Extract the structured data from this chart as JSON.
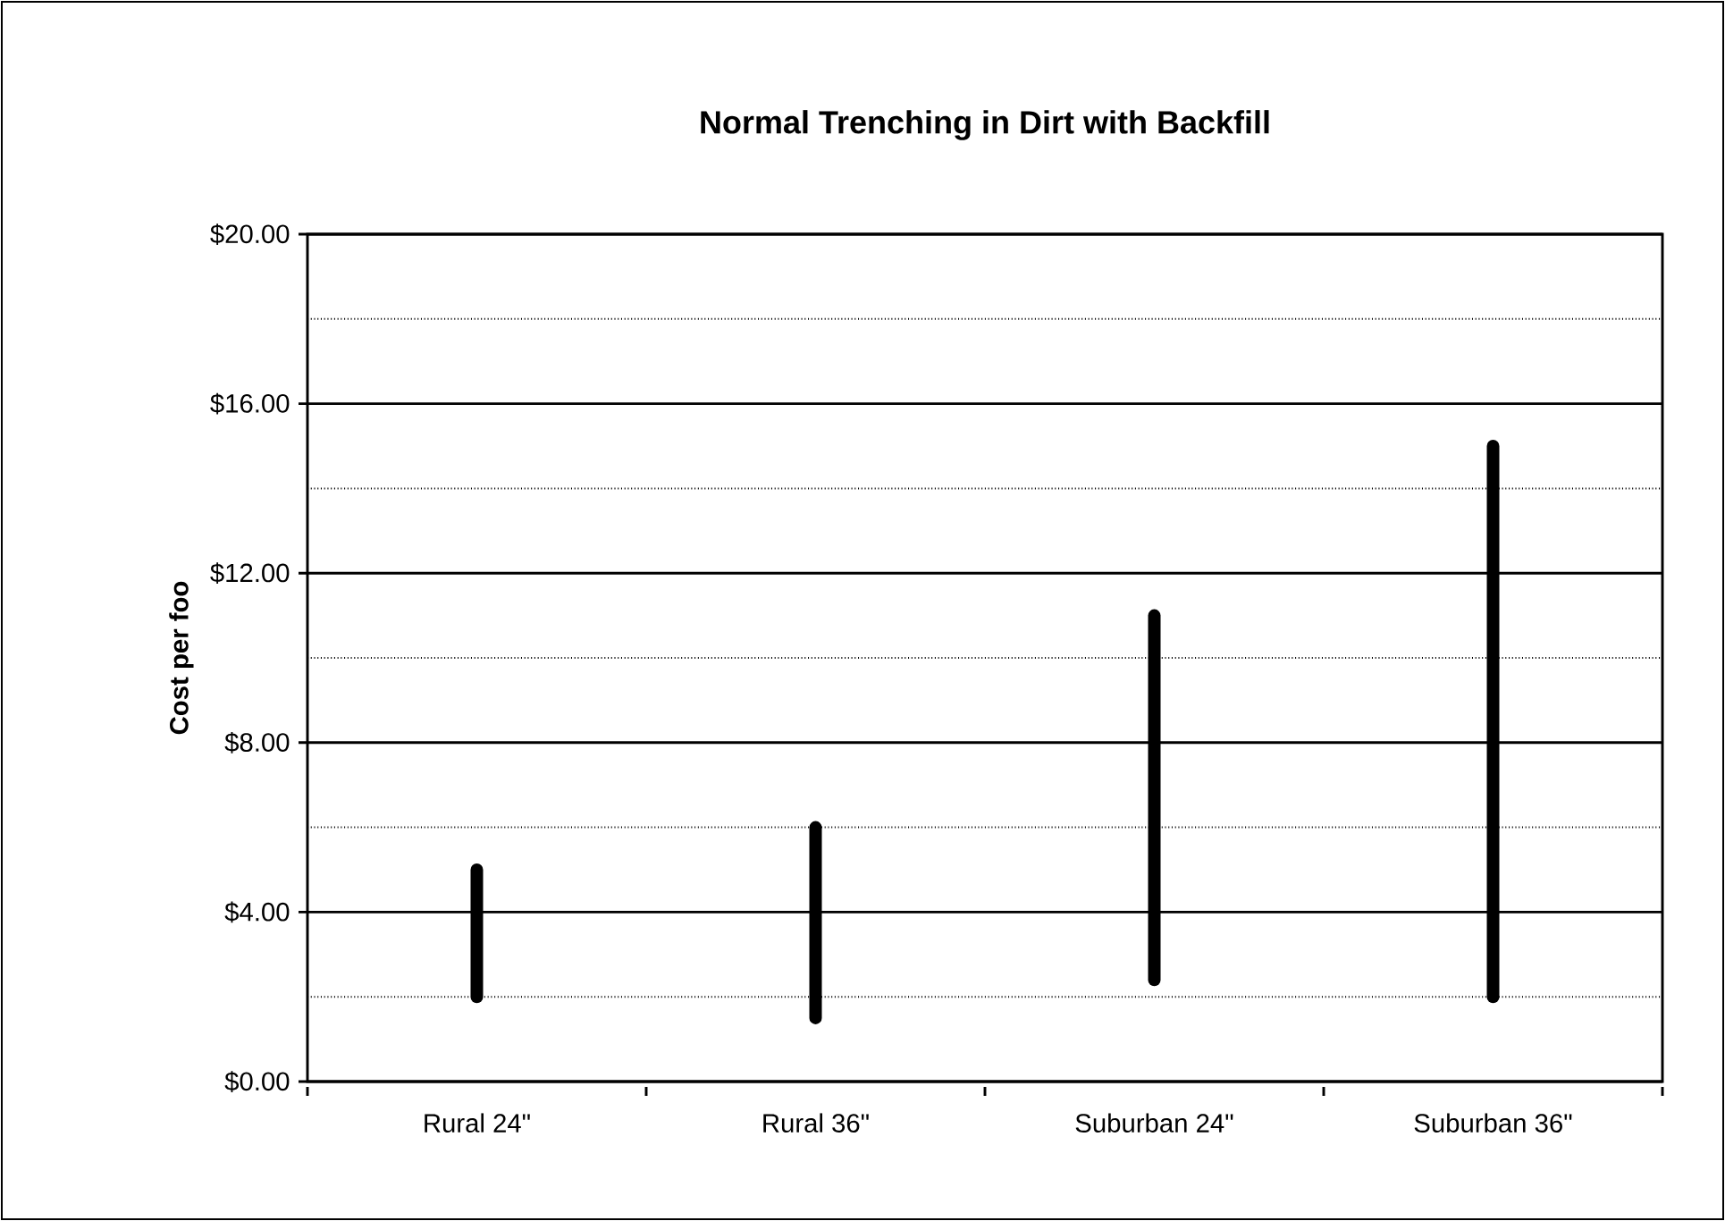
{
  "chart_data": {
    "type": "bar",
    "title": "Normal Trenching in Dirt with Backfill",
    "ylabel": "Cost per foo",
    "categories": [
      "Rural 24\"",
      "Rural 36\"",
      "Suburban 24\"",
      "Suburban 36\""
    ],
    "base": [
      2,
      1.5,
      2.4,
      2
    ],
    "values": [
      3,
      4.5,
      8.6,
      13
    ],
    "color": "#000000",
    "ylim": [
      0,
      20
    ],
    "yticks": [
      {
        "value": 0,
        "label": "$0.00"
      },
      {
        "value": 2,
        "label": null
      },
      {
        "value": 4,
        "label": "$4.00"
      },
      {
        "value": 6,
        "label": null
      },
      {
        "value": 8,
        "label": "$8.00"
      },
      {
        "value": 10,
        "label": null
      },
      {
        "value": 12,
        "label": "$12.00"
      },
      {
        "value": 14,
        "label": null
      },
      {
        "value": 16,
        "label": "$16.00"
      },
      {
        "value": 18,
        "label": null
      },
      {
        "value": 20,
        "label": "$20.00"
      }
    ],
    "grid": "y"
  }
}
